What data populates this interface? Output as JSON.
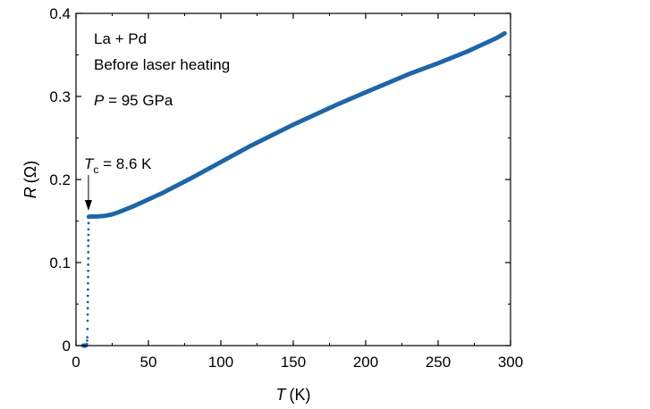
{
  "chart_data": {
    "type": "scatter",
    "xlabel": {
      "symbol": "T",
      "unit": "(K)"
    },
    "ylabel": {
      "symbol": "R",
      "unit": "(Ω)"
    },
    "xlim": [
      0,
      300
    ],
    "ylim": [
      0,
      0.4
    ],
    "xticks": [
      "0",
      "50",
      "100",
      "150",
      "200",
      "250",
      "300"
    ],
    "yticks": [
      "0",
      "0.1",
      "0.2",
      "0.3",
      "0.4"
    ],
    "grid": false,
    "legend": "none",
    "series_color": "#1f67a6",
    "annotations": {
      "line1": "La + Pd",
      "line2": "Before laser heating",
      "pressure": {
        "symbol": "P",
        "rest": " = 95 GPa"
      },
      "tc": {
        "symbol": "T",
        "sub": "c",
        "rest": " = 8.6 K",
        "x": 8.6
      }
    },
    "curve_points": [
      [
        5.0,
        0.0
      ],
      [
        6.0,
        0.0
      ],
      [
        7.0,
        0.0
      ],
      [
        7.5,
        0.002
      ],
      [
        7.8,
        0.01
      ],
      [
        8.0,
        0.03
      ],
      [
        8.2,
        0.06
      ],
      [
        8.4,
        0.09
      ],
      [
        8.5,
        0.12
      ],
      [
        8.6,
        0.14
      ],
      [
        8.8,
        0.155
      ],
      [
        10,
        0.1555
      ],
      [
        15,
        0.1555
      ],
      [
        20,
        0.1562
      ],
      [
        25,
        0.158
      ],
      [
        30,
        0.161
      ],
      [
        40,
        0.168
      ],
      [
        50,
        0.176
      ],
      [
        60,
        0.184
      ],
      [
        70,
        0.193
      ],
      [
        80,
        0.202
      ],
      [
        100,
        0.221
      ],
      [
        120,
        0.24
      ],
      [
        150,
        0.266
      ],
      [
        180,
        0.29
      ],
      [
        200,
        0.305
      ],
      [
        230,
        0.327
      ],
      [
        250,
        0.34
      ],
      [
        270,
        0.354
      ],
      [
        290,
        0.37
      ],
      [
        296,
        0.376
      ]
    ]
  }
}
